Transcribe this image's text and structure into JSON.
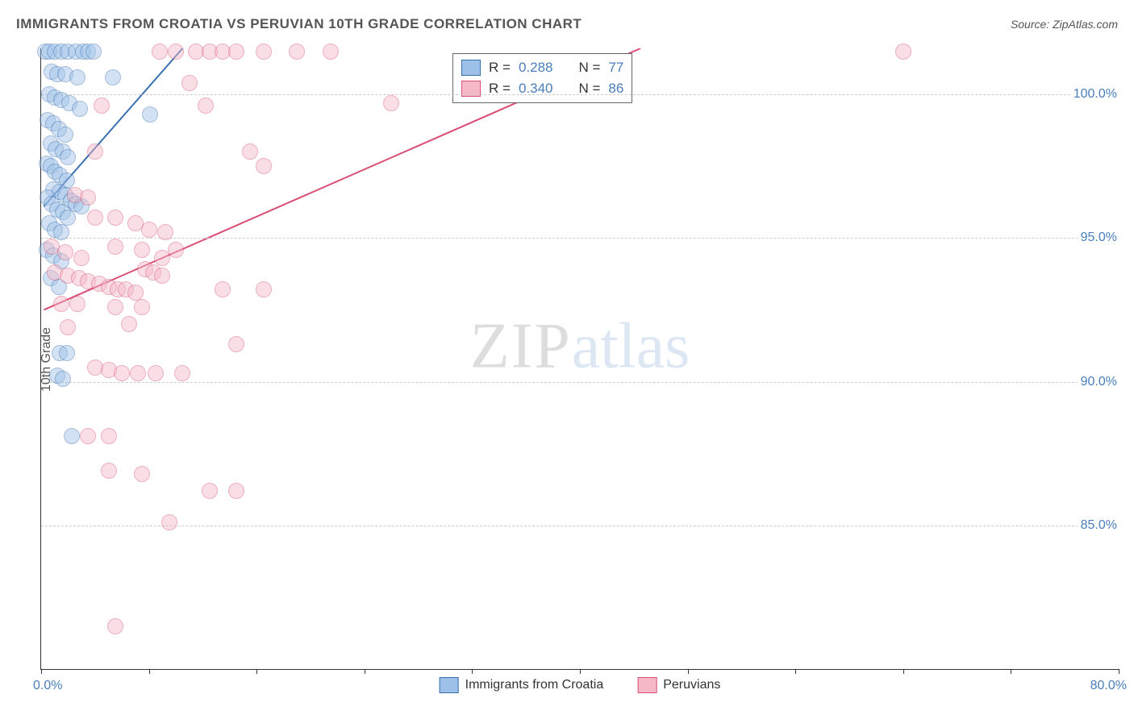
{
  "title": "IMMIGRANTS FROM CROATIA VS PERUVIAN 10TH GRADE CORRELATION CHART",
  "source": "Source: ZipAtlas.com",
  "ylabel": "10th Grade",
  "watermark": {
    "part1": "ZIP",
    "part2": "atlas"
  },
  "chart": {
    "type": "scatter",
    "background_color": "#ffffff",
    "grid_color": "#cccccc",
    "axis_color": "#333333",
    "xlim": [
      0,
      80
    ],
    "ylim": [
      80,
      101.6
    ],
    "xtick_positions": [
      0,
      8,
      16,
      24,
      32,
      40,
      48,
      56,
      64,
      72,
      80
    ],
    "xtick_labels": {
      "start": "0.0%",
      "end": "80.0%"
    },
    "ytick_positions": [
      85,
      90,
      95,
      100
    ],
    "ytick_labels": [
      "85.0%",
      "90.0%",
      "95.0%",
      "100.0%"
    ],
    "label_color": "#4a7ebb",
    "label_fontsize": 16,
    "marker_radius": 10,
    "marker_opacity": 0.45,
    "series": [
      {
        "name": "Immigrants from Croatia",
        "fill": "#9cc0e7",
        "stroke": "#3a6fb0",
        "r": 0.288,
        "n": 77,
        "trend": {
          "x1": 0.2,
          "y1": 96.1,
          "x2": 10.5,
          "y2": 101.6,
          "width": 2
        },
        "points": [
          [
            0.3,
            101.5
          ],
          [
            0.6,
            101.5
          ],
          [
            1.0,
            101.5
          ],
          [
            1.5,
            101.5
          ],
          [
            2.0,
            101.5
          ],
          [
            2.6,
            101.5
          ],
          [
            3.1,
            101.5
          ],
          [
            3.5,
            101.5
          ],
          [
            3.9,
            101.5
          ],
          [
            0.8,
            100.8
          ],
          [
            1.2,
            100.7
          ],
          [
            1.8,
            100.7
          ],
          [
            2.7,
            100.6
          ],
          [
            5.3,
            100.6
          ],
          [
            0.6,
            100.0
          ],
          [
            1.0,
            99.9
          ],
          [
            1.5,
            99.8
          ],
          [
            2.1,
            99.7
          ],
          [
            2.9,
            99.5
          ],
          [
            8.1,
            99.3
          ],
          [
            0.5,
            99.1
          ],
          [
            0.9,
            99.0
          ],
          [
            1.3,
            98.8
          ],
          [
            1.8,
            98.6
          ],
          [
            0.7,
            98.3
          ],
          [
            1.1,
            98.1
          ],
          [
            1.6,
            98.0
          ],
          [
            2.0,
            97.8
          ],
          [
            0.4,
            97.6
          ],
          [
            0.7,
            97.5
          ],
          [
            1.0,
            97.3
          ],
          [
            1.4,
            97.2
          ],
          [
            1.9,
            97.0
          ],
          [
            0.9,
            96.7
          ],
          [
            1.4,
            96.6
          ],
          [
            1.8,
            96.5
          ],
          [
            2.2,
            96.3
          ],
          [
            2.6,
            96.2
          ],
          [
            3.0,
            96.1
          ],
          [
            0.5,
            96.4
          ],
          [
            0.8,
            96.2
          ],
          [
            1.2,
            96.0
          ],
          [
            1.6,
            95.9
          ],
          [
            2.0,
            95.7
          ],
          [
            0.6,
            95.5
          ],
          [
            1.0,
            95.3
          ],
          [
            1.5,
            95.2
          ],
          [
            0.4,
            94.6
          ],
          [
            0.9,
            94.4
          ],
          [
            1.5,
            94.2
          ],
          [
            0.7,
            93.6
          ],
          [
            1.3,
            93.3
          ],
          [
            1.4,
            91.0
          ],
          [
            1.9,
            91.0
          ],
          [
            1.2,
            90.2
          ],
          [
            1.6,
            90.1
          ],
          [
            2.3,
            88.1
          ]
        ]
      },
      {
        "name": "Peruvians",
        "fill": "#f4b8c6",
        "stroke": "#d94f73",
        "r": 0.34,
        "n": 86,
        "trend": {
          "x1": 0.2,
          "y1": 92.5,
          "x2": 44.5,
          "y2": 101.6,
          "width": 2
        },
        "points": [
          [
            8.8,
            101.5
          ],
          [
            10.0,
            101.5
          ],
          [
            11.5,
            101.5
          ],
          [
            12.5,
            101.5
          ],
          [
            13.5,
            101.5
          ],
          [
            14.5,
            101.5
          ],
          [
            16.5,
            101.5
          ],
          [
            19.0,
            101.5
          ],
          [
            21.5,
            101.5
          ],
          [
            64.0,
            101.5
          ],
          [
            11.0,
            100.4
          ],
          [
            4.5,
            99.6
          ],
          [
            12.2,
            99.6
          ],
          [
            26.0,
            99.7
          ],
          [
            4.0,
            98.0
          ],
          [
            15.5,
            98.0
          ],
          [
            16.5,
            97.5
          ],
          [
            2.5,
            96.5
          ],
          [
            3.5,
            96.4
          ],
          [
            4.0,
            95.7
          ],
          [
            5.5,
            95.7
          ],
          [
            7.0,
            95.5
          ],
          [
            8.0,
            95.3
          ],
          [
            9.2,
            95.2
          ],
          [
            0.8,
            94.7
          ],
          [
            1.8,
            94.5
          ],
          [
            3.0,
            94.3
          ],
          [
            5.5,
            94.7
          ],
          [
            7.5,
            94.6
          ],
          [
            9.0,
            94.3
          ],
          [
            10.0,
            94.6
          ],
          [
            1.0,
            93.8
          ],
          [
            2.0,
            93.7
          ],
          [
            2.8,
            93.6
          ],
          [
            3.5,
            93.5
          ],
          [
            4.3,
            93.4
          ],
          [
            5.0,
            93.3
          ],
          [
            5.7,
            93.2
          ],
          [
            6.3,
            93.2
          ],
          [
            7.0,
            93.1
          ],
          [
            7.7,
            93.9
          ],
          [
            8.3,
            93.8
          ],
          [
            9.0,
            93.7
          ],
          [
            13.5,
            93.2
          ],
          [
            16.5,
            93.2
          ],
          [
            1.5,
            92.7
          ],
          [
            2.7,
            92.7
          ],
          [
            5.5,
            92.6
          ],
          [
            7.5,
            92.6
          ],
          [
            2.0,
            91.9
          ],
          [
            6.5,
            92.0
          ],
          [
            14.5,
            91.3
          ],
          [
            4.0,
            90.5
          ],
          [
            5.0,
            90.4
          ],
          [
            6.0,
            90.3
          ],
          [
            7.2,
            90.3
          ],
          [
            8.5,
            90.3
          ],
          [
            10.5,
            90.3
          ],
          [
            3.5,
            88.1
          ],
          [
            5.0,
            88.1
          ],
          [
            5.0,
            86.9
          ],
          [
            7.5,
            86.8
          ],
          [
            12.5,
            86.2
          ],
          [
            14.5,
            86.2
          ],
          [
            9.5,
            85.1
          ],
          [
            5.5,
            81.5
          ]
        ]
      }
    ]
  },
  "legend_stats": {
    "r_label": "R  =",
    "n_label": "N  ="
  },
  "bottom_legend": [
    {
      "label": "Immigrants from Croatia",
      "fill": "#9cc0e7",
      "stroke": "#3a6fb0"
    },
    {
      "label": "Peruvians",
      "fill": "#f4b8c6",
      "stroke": "#d94f73"
    }
  ]
}
